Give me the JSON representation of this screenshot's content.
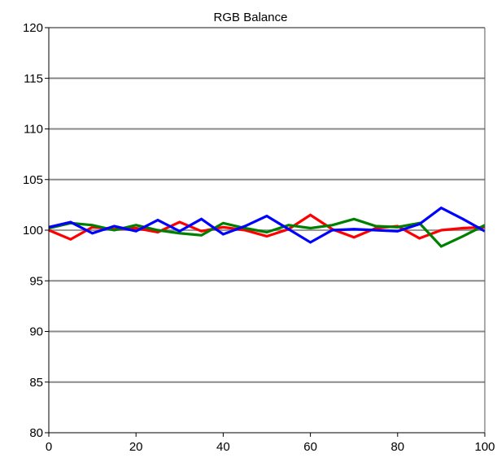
{
  "chart_data": {
    "type": "line",
    "title": "RGB Balance",
    "xlabel": "",
    "ylabel": "",
    "xlim": [
      0,
      100
    ],
    "ylim": [
      80,
      120
    ],
    "xticks": [
      0,
      20,
      40,
      60,
      80,
      100
    ],
    "yticks": [
      80,
      85,
      90,
      95,
      100,
      105,
      110,
      115,
      120
    ],
    "grid": "horizontal",
    "reference_line": 100,
    "series": [
      {
        "color": "#ff0000",
        "x": [
          0,
          5,
          10,
          15,
          20,
          25,
          30,
          35,
          40,
          45,
          50,
          55,
          60,
          65,
          70,
          75,
          80,
          85,
          90,
          95,
          100
        ],
        "y": [
          100.0,
          99.1,
          100.3,
          100.1,
          100.2,
          99.8,
          100.8,
          99.9,
          100.3,
          100.0,
          99.4,
          100.1,
          101.5,
          100.1,
          99.3,
          100.2,
          100.4,
          99.2,
          100.0,
          100.2,
          100.3
        ]
      },
      {
        "color": "#008000",
        "x": [
          0,
          5,
          10,
          15,
          20,
          25,
          30,
          35,
          40,
          45,
          50,
          55,
          60,
          65,
          70,
          75,
          80,
          85,
          90,
          95,
          100
        ],
        "y": [
          100.2,
          100.7,
          100.5,
          100.0,
          100.5,
          100.0,
          99.7,
          99.5,
          100.7,
          100.2,
          99.8,
          100.5,
          100.2,
          100.5,
          101.1,
          100.4,
          100.3,
          100.7,
          98.4,
          99.4,
          100.5
        ]
      },
      {
        "color": "#0000ff",
        "x": [
          0,
          5,
          10,
          15,
          20,
          25,
          30,
          35,
          40,
          45,
          50,
          55,
          60,
          65,
          70,
          75,
          80,
          85,
          90,
          95,
          100
        ],
        "y": [
          100.3,
          100.8,
          99.7,
          100.4,
          99.9,
          101.0,
          99.9,
          101.1,
          99.6,
          100.4,
          101.4,
          100.1,
          98.8,
          100.0,
          100.1,
          100.0,
          99.9,
          100.6,
          102.2,
          101.1,
          99.9
        ]
      }
    ]
  }
}
